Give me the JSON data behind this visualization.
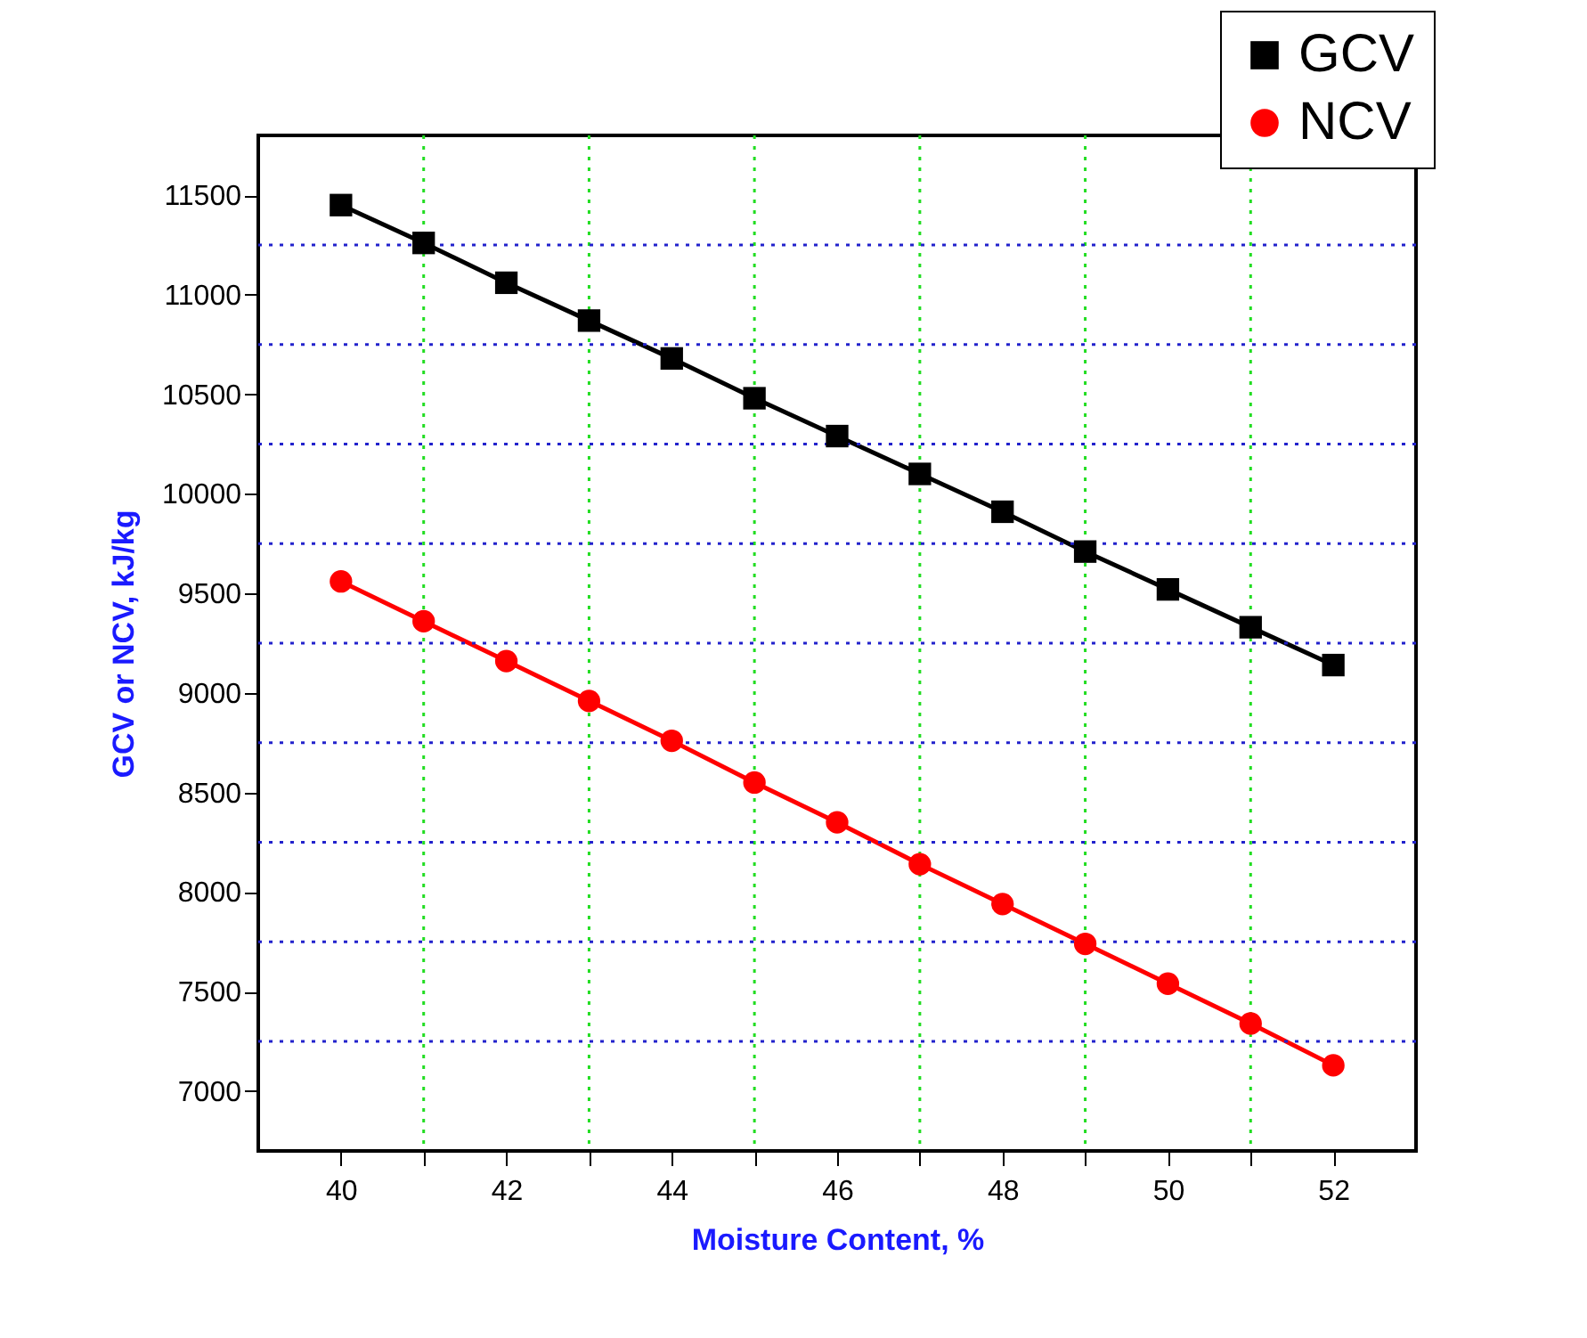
{
  "chart_data": {
    "type": "line",
    "xlabel": "Moisture Content,  %",
    "ylabel": "GCV or NCV, kJ/kg",
    "x": [
      40,
      41,
      42,
      43,
      44,
      45,
      46,
      47,
      48,
      49,
      50,
      51,
      52
    ],
    "series": [
      {
        "name": "GCV",
        "color": "#000000",
        "marker": "square",
        "values": [
          11450,
          11260,
          11060,
          10870,
          10680,
          10480,
          10290,
          10100,
          9910,
          9710,
          9520,
          9330,
          9140
        ]
      },
      {
        "name": "NCV",
        "color": "#ff0000",
        "marker": "circle",
        "values": [
          9560,
          9360,
          9160,
          8960,
          8760,
          8550,
          8350,
          8140,
          7940,
          7740,
          7540,
          7340,
          7130
        ]
      }
    ],
    "xlim": [
      39,
      53
    ],
    "xticks": [
      40,
      {
        "value": 41,
        "label": null
      },
      42,
      {
        "value": 43,
        "label": null
      },
      44,
      {
        "value": 45,
        "label": null
      },
      46,
      {
        "value": 47,
        "label": null
      },
      48,
      {
        "value": 49,
        "label": null
      },
      50,
      {
        "value": 51,
        "label": null
      },
      52
    ],
    "ylim": [
      6700,
      11800
    ],
    "yticks": [
      7000,
      {
        "value": 7250,
        "label": null
      },
      7500,
      {
        "value": 7750,
        "label": null
      },
      8000,
      {
        "value": 8250,
        "label": null
      },
      8500,
      {
        "value": 8750,
        "label": null
      },
      9000,
      {
        "value": 9250,
        "label": null
      },
      9500,
      {
        "value": 9750,
        "label": null
      },
      10000,
      {
        "value": 10250,
        "label": null
      },
      10500,
      {
        "value": 10750,
        "label": null
      },
      11000,
      {
        "value": 11250,
        "label": null
      },
      11500
    ],
    "grid": true,
    "legend": "top right",
    "line_style": "solid"
  }
}
